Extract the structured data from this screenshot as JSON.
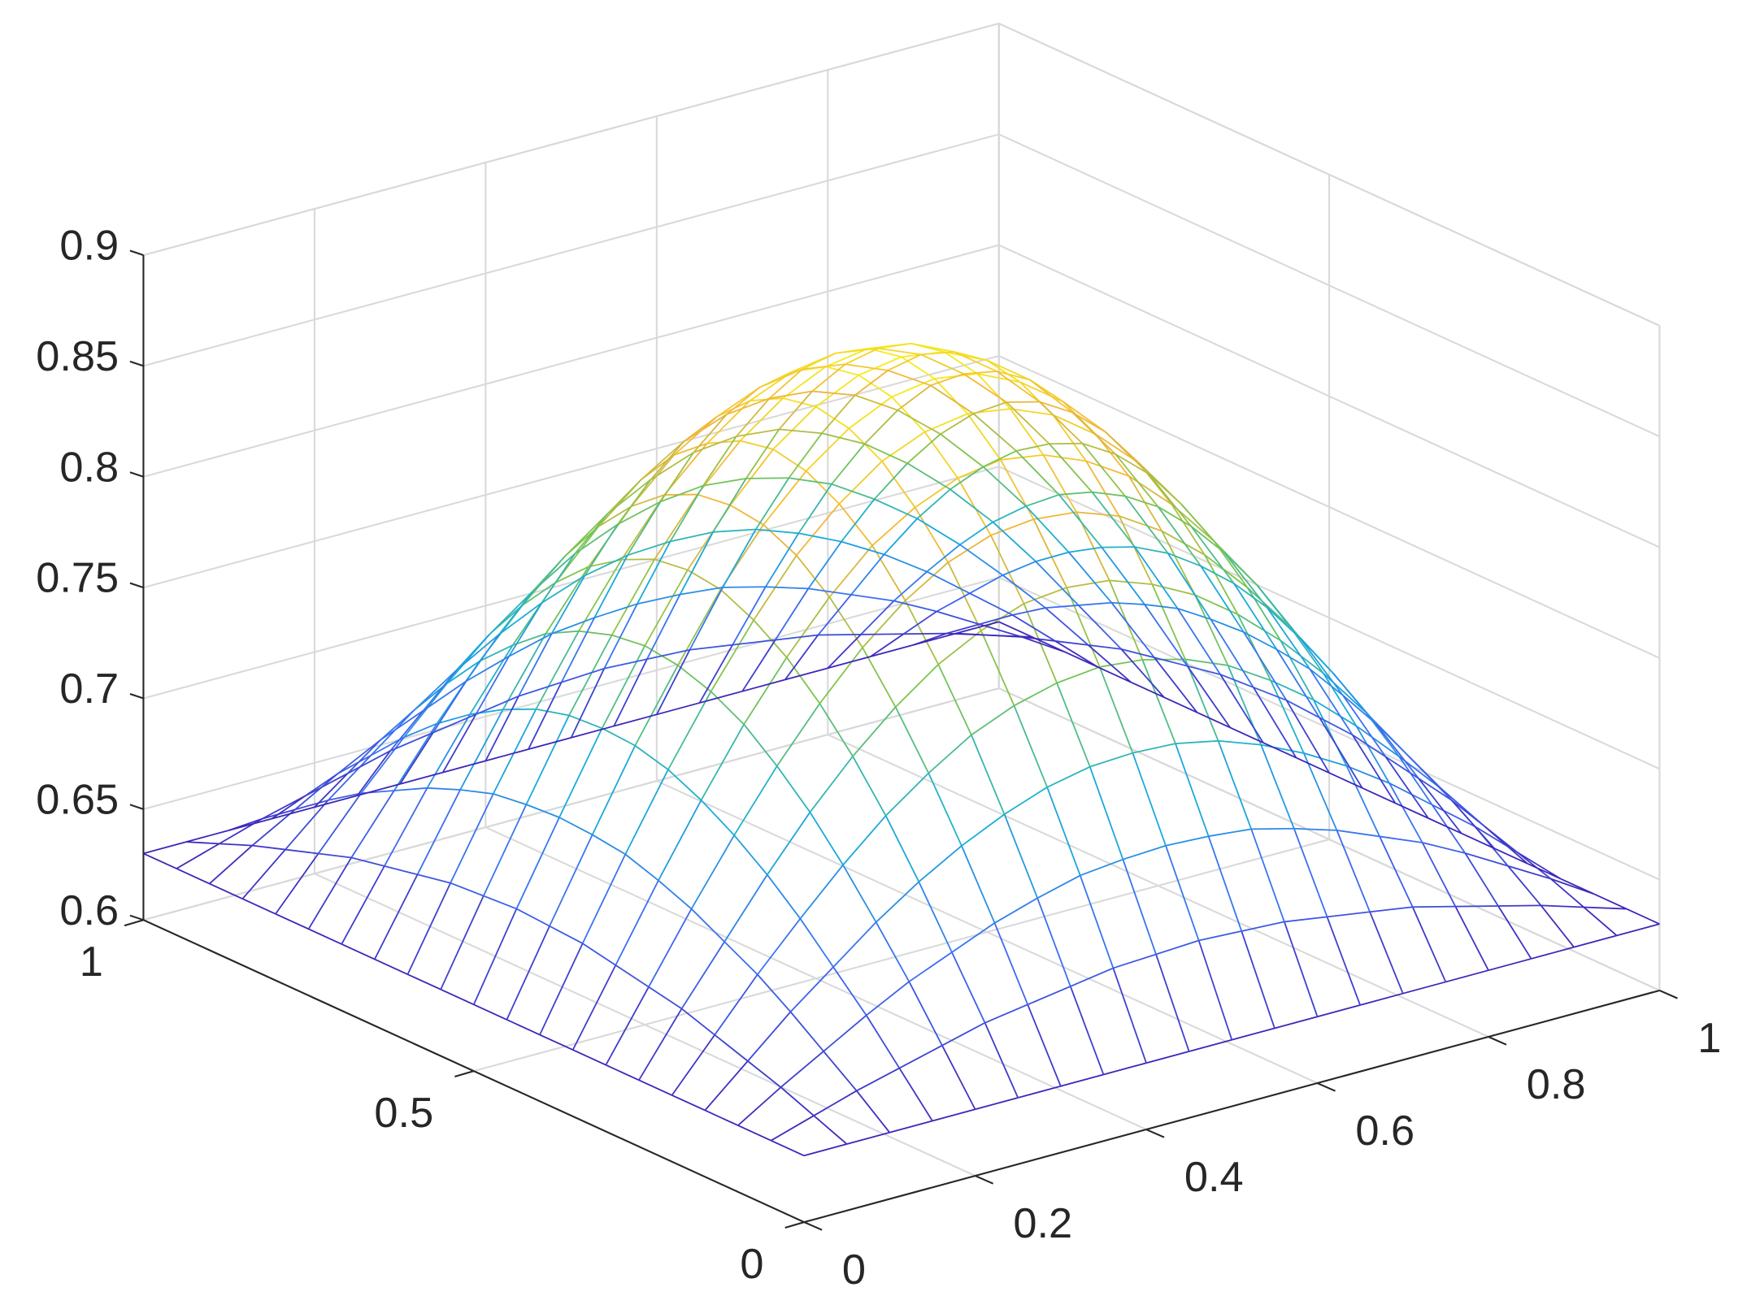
{
  "chart_data": {
    "type": "mesh",
    "x": [
      0,
      0.05,
      0.1,
      0.15,
      0.2,
      0.25,
      0.3,
      0.35,
      0.4,
      0.45,
      0.5,
      0.55,
      0.6,
      0.65,
      0.7,
      0.75,
      0.8,
      0.85,
      0.9,
      0.95,
      1
    ],
    "y": [
      0,
      0.05,
      0.1,
      0.15,
      0.2,
      0.25,
      0.3,
      0.35,
      0.4,
      0.45,
      0.5,
      0.55,
      0.6,
      0.65,
      0.7,
      0.75,
      0.8,
      0.85,
      0.9,
      0.95,
      1
    ],
    "z": [
      [
        0.63,
        0.63,
        0.63,
        0.63,
        0.63,
        0.63,
        0.63,
        0.63,
        0.63,
        0.63,
        0.63,
        0.63,
        0.63,
        0.63,
        0.63,
        0.63,
        0.63,
        0.63,
        0.63,
        0.63,
        0.63
      ],
      [
        0.63,
        0.636,
        0.642,
        0.647,
        0.652,
        0.657,
        0.66,
        0.663,
        0.666,
        0.667,
        0.668,
        0.667,
        0.666,
        0.663,
        0.66,
        0.657,
        0.652,
        0.647,
        0.642,
        0.636,
        0.63
      ],
      [
        0.63,
        0.642,
        0.653,
        0.664,
        0.674,
        0.682,
        0.69,
        0.696,
        0.701,
        0.703,
        0.704,
        0.703,
        0.701,
        0.696,
        0.69,
        0.682,
        0.674,
        0.664,
        0.653,
        0.642,
        0.63
      ],
      [
        0.63,
        0.647,
        0.664,
        0.679,
        0.694,
        0.707,
        0.718,
        0.727,
        0.734,
        0.738,
        0.739,
        0.738,
        0.734,
        0.727,
        0.718,
        0.707,
        0.694,
        0.679,
        0.664,
        0.647,
        0.63
      ],
      [
        0.63,
        0.652,
        0.674,
        0.694,
        0.713,
        0.73,
        0.744,
        0.756,
        0.764,
        0.769,
        0.771,
        0.769,
        0.764,
        0.756,
        0.744,
        0.73,
        0.713,
        0.694,
        0.674,
        0.652,
        0.63
      ],
      [
        0.63,
        0.657,
        0.682,
        0.707,
        0.73,
        0.75,
        0.767,
        0.781,
        0.791,
        0.798,
        0.8,
        0.798,
        0.791,
        0.781,
        0.767,
        0.75,
        0.73,
        0.707,
        0.682,
        0.657,
        0.63
      ],
      [
        0.63,
        0.66,
        0.69,
        0.718,
        0.744,
        0.767,
        0.787,
        0.803,
        0.815,
        0.822,
        0.824,
        0.822,
        0.815,
        0.803,
        0.787,
        0.767,
        0.744,
        0.718,
        0.69,
        0.66,
        0.63
      ],
      [
        0.63,
        0.663,
        0.696,
        0.727,
        0.756,
        0.781,
        0.803,
        0.821,
        0.833,
        0.841,
        0.844,
        0.841,
        0.833,
        0.821,
        0.803,
        0.781,
        0.756,
        0.727,
        0.696,
        0.663,
        0.63
      ],
      [
        0.63,
        0.666,
        0.701,
        0.734,
        0.764,
        0.791,
        0.815,
        0.833,
        0.847,
        0.855,
        0.858,
        0.855,
        0.847,
        0.833,
        0.815,
        0.791,
        0.764,
        0.734,
        0.701,
        0.666,
        0.63
      ],
      [
        0.63,
        0.667,
        0.703,
        0.738,
        0.769,
        0.798,
        0.822,
        0.841,
        0.855,
        0.864,
        0.867,
        0.864,
        0.855,
        0.841,
        0.822,
        0.798,
        0.769,
        0.738,
        0.703,
        0.667,
        0.63
      ],
      [
        0.63,
        0.668,
        0.704,
        0.739,
        0.771,
        0.8,
        0.824,
        0.844,
        0.858,
        0.867,
        0.87,
        0.867,
        0.858,
        0.844,
        0.824,
        0.8,
        0.771,
        0.739,
        0.704,
        0.668,
        0.63
      ],
      [
        0.63,
        0.667,
        0.703,
        0.738,
        0.769,
        0.798,
        0.822,
        0.841,
        0.855,
        0.864,
        0.867,
        0.864,
        0.855,
        0.841,
        0.822,
        0.798,
        0.769,
        0.738,
        0.703,
        0.667,
        0.63
      ],
      [
        0.63,
        0.666,
        0.701,
        0.734,
        0.764,
        0.791,
        0.815,
        0.833,
        0.847,
        0.855,
        0.858,
        0.855,
        0.847,
        0.833,
        0.815,
        0.791,
        0.764,
        0.734,
        0.701,
        0.666,
        0.63
      ],
      [
        0.63,
        0.663,
        0.696,
        0.727,
        0.756,
        0.781,
        0.803,
        0.821,
        0.833,
        0.841,
        0.844,
        0.841,
        0.833,
        0.821,
        0.803,
        0.781,
        0.756,
        0.727,
        0.696,
        0.663,
        0.63
      ],
      [
        0.63,
        0.66,
        0.69,
        0.718,
        0.744,
        0.767,
        0.787,
        0.803,
        0.815,
        0.822,
        0.824,
        0.822,
        0.815,
        0.803,
        0.787,
        0.767,
        0.744,
        0.718,
        0.69,
        0.66,
        0.63
      ],
      [
        0.63,
        0.657,
        0.682,
        0.707,
        0.73,
        0.75,
        0.767,
        0.781,
        0.791,
        0.798,
        0.8,
        0.798,
        0.791,
        0.781,
        0.767,
        0.75,
        0.73,
        0.707,
        0.682,
        0.657,
        0.63
      ],
      [
        0.63,
        0.652,
        0.674,
        0.694,
        0.713,
        0.73,
        0.744,
        0.756,
        0.764,
        0.769,
        0.771,
        0.769,
        0.764,
        0.756,
        0.744,
        0.73,
        0.713,
        0.694,
        0.674,
        0.652,
        0.63
      ],
      [
        0.63,
        0.647,
        0.664,
        0.679,
        0.694,
        0.707,
        0.718,
        0.727,
        0.734,
        0.738,
        0.739,
        0.738,
        0.734,
        0.727,
        0.718,
        0.707,
        0.694,
        0.679,
        0.664,
        0.647,
        0.63
      ],
      [
        0.63,
        0.642,
        0.653,
        0.664,
        0.674,
        0.682,
        0.69,
        0.696,
        0.701,
        0.703,
        0.704,
        0.703,
        0.701,
        0.696,
        0.69,
        0.682,
        0.674,
        0.664,
        0.653,
        0.642,
        0.63
      ],
      [
        0.63,
        0.636,
        0.642,
        0.647,
        0.652,
        0.657,
        0.66,
        0.663,
        0.666,
        0.667,
        0.668,
        0.667,
        0.666,
        0.663,
        0.66,
        0.657,
        0.652,
        0.647,
        0.642,
        0.636,
        0.63
      ],
      [
        0.63,
        0.63,
        0.63,
        0.63,
        0.63,
        0.63,
        0.63,
        0.63,
        0.63,
        0.63,
        0.63,
        0.63,
        0.63,
        0.63,
        0.63,
        0.63,
        0.63,
        0.63,
        0.63,
        0.63,
        0.63
      ]
    ],
    "xlim": [
      0,
      1
    ],
    "ylim": [
      0,
      1
    ],
    "zlim": [
      0.6,
      0.9
    ],
    "xticks": [
      0,
      0.2,
      0.4,
      0.6,
      0.8,
      1
    ],
    "yticks": [
      0,
      0.5,
      1
    ],
    "zticks": [
      0.6,
      0.65,
      0.7,
      0.75,
      0.8,
      0.85,
      0.9
    ],
    "grid": true,
    "colormap": [
      "#3e26b8",
      "#3d6cf2",
      "#16b0d8",
      "#7cc54c",
      "#f2b53a",
      "#f5ee1a"
    ]
  }
}
